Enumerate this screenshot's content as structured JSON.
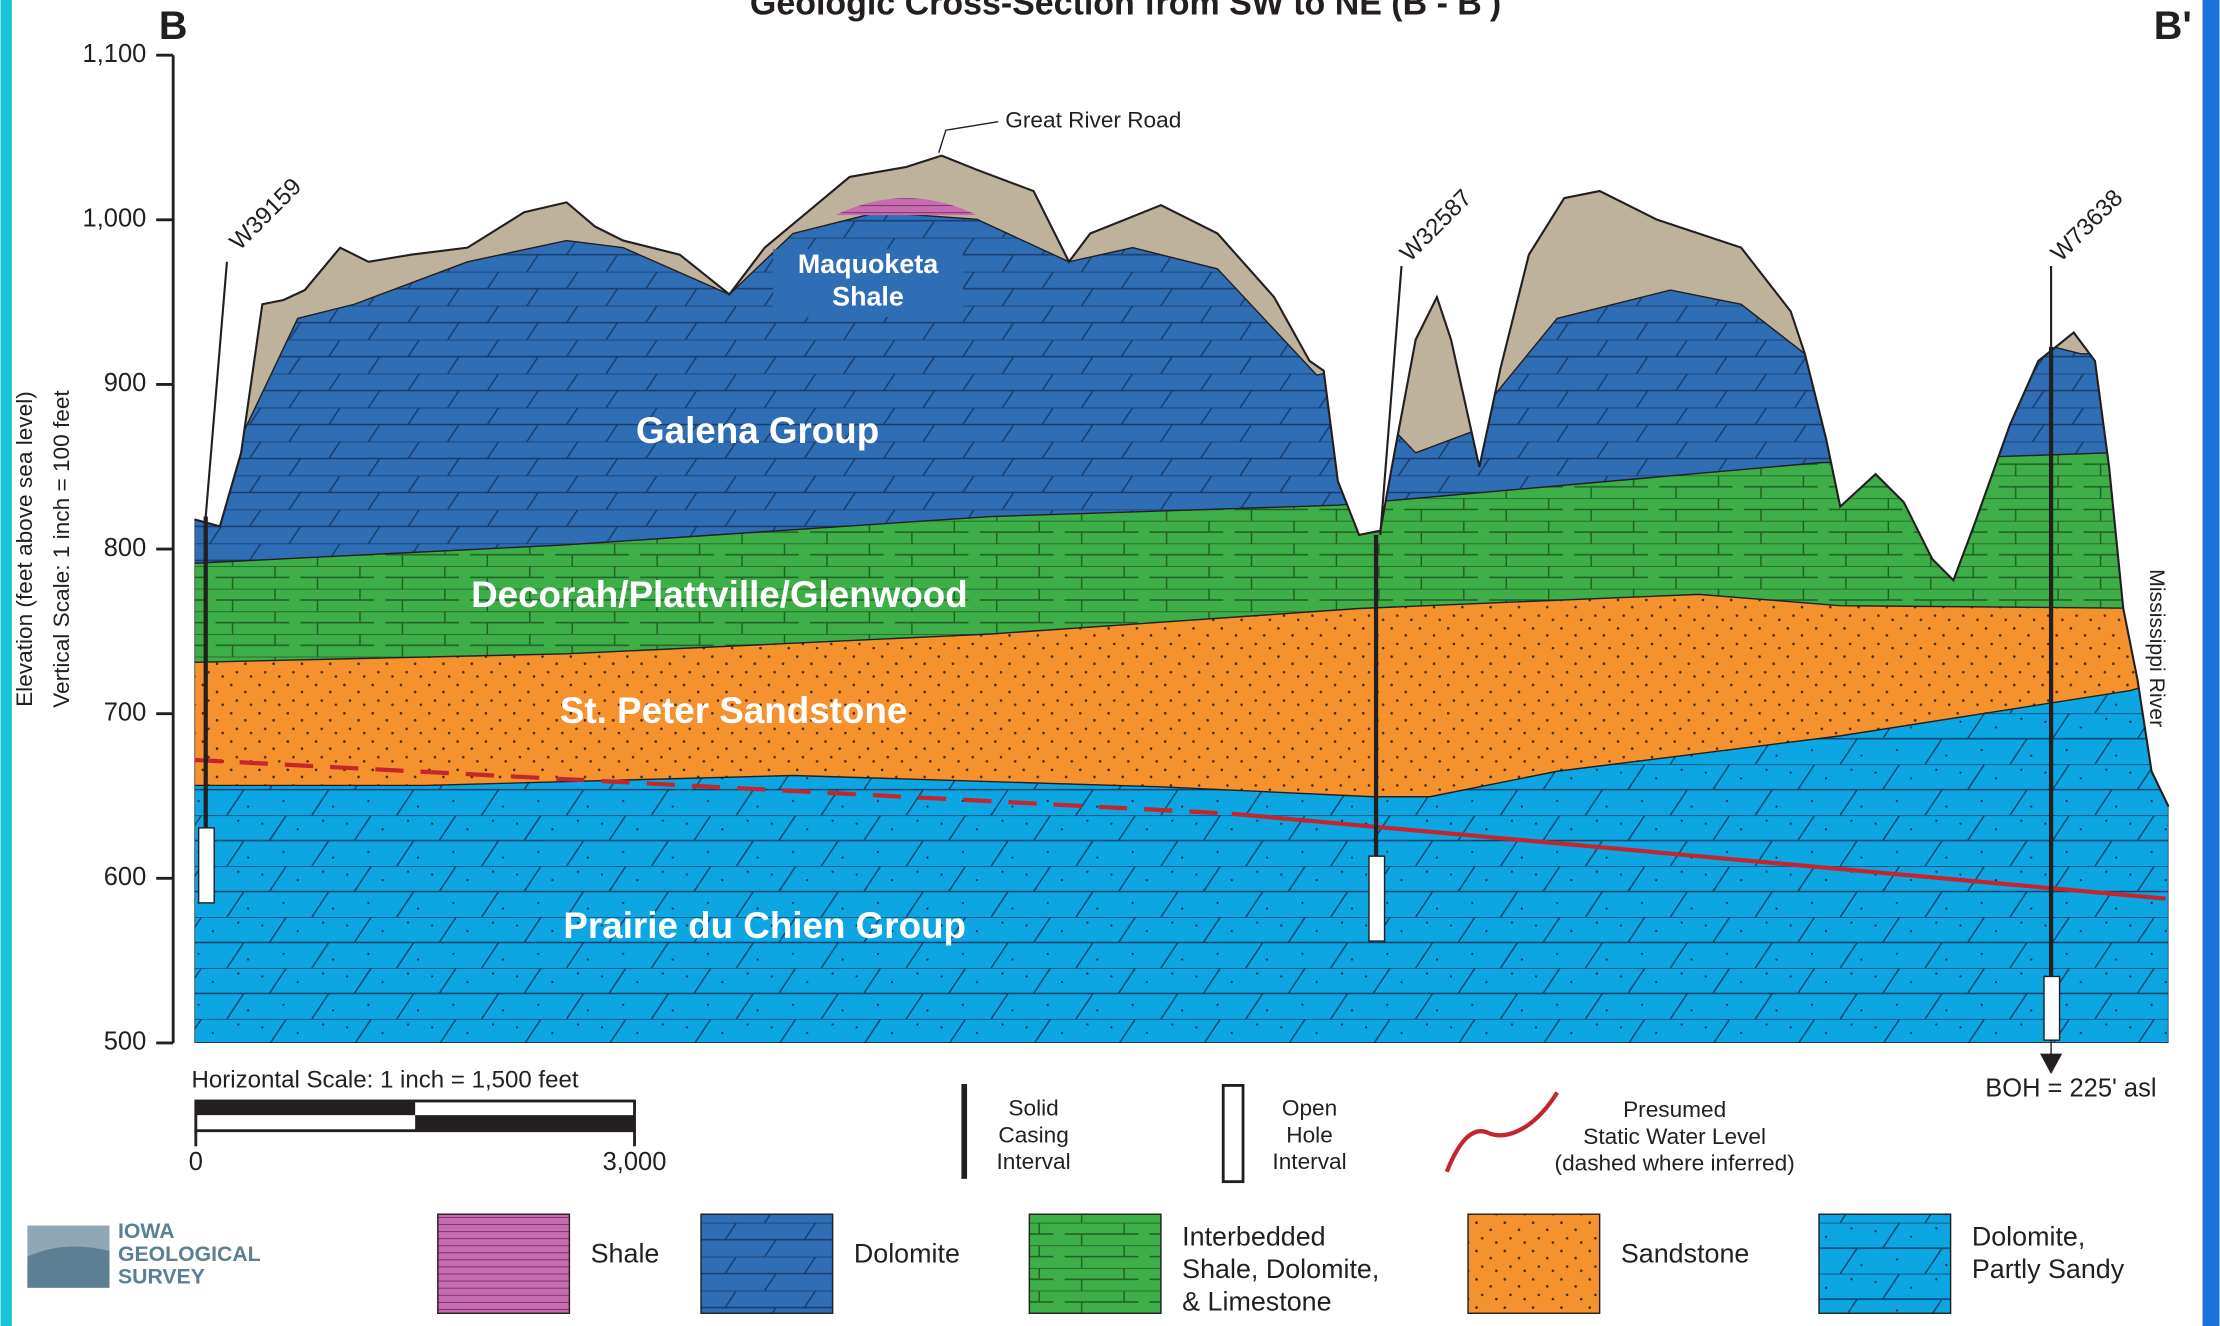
{
  "header": {
    "title": "Geologic Cross-Section from SW to NE (B - B')",
    "left_end": "B",
    "right_end": "B'"
  },
  "y_axis": {
    "label": "Elevation (feet above sea level)",
    "scale_note": "Vertical Scale: 1 inch = 100 feet",
    "lim": [
      500,
      1100
    ],
    "ticks": [
      500,
      600,
      700,
      800,
      900,
      {
        "value": 1000,
        "label": "1,000"
      },
      {
        "value": 1100,
        "label": "1,100"
      }
    ]
  },
  "wells": [
    "W39159",
    "W32587",
    "W73638"
  ],
  "annotations": {
    "road": "Great River Road",
    "river": "Mississippi River",
    "boh": "BOH = 225' asl"
  },
  "layers": {
    "maquoketa": [
      "Maquoketa",
      "Shale"
    ],
    "galena": "Galena Group",
    "decorah": "Decorah/Plattville/Glenwood",
    "st_peter": "St. Peter Sandstone",
    "prairie": "Prairie du Chien Group"
  },
  "scale_bar": {
    "label": "Horizontal Scale: 1 inch = 1,500 feet",
    "ticks": [
      0,
      {
        "value": 3000,
        "label": "3,000"
      }
    ]
  },
  "symbols": {
    "casing": [
      "Solid",
      "Casing",
      "Interval"
    ],
    "open_hole": [
      "Open",
      "Hole",
      "Interval"
    ],
    "water": [
      "Presumed",
      "Static Water Level",
      "(dashed where inferred)"
    ]
  },
  "legend": {
    "shale": [
      "Shale"
    ],
    "dolomite": [
      "Dolomite"
    ],
    "interbedded": [
      "Interbedded",
      "Shale, Dolomite,",
      "& Limestone"
    ],
    "sandstone": [
      "Sandstone"
    ],
    "sandy_dolomite": [
      "Dolomite,",
      "Partly Sandy"
    ]
  },
  "logo": [
    "IOWA",
    "GEOLOGICAL",
    "SURVEY"
  ]
}
